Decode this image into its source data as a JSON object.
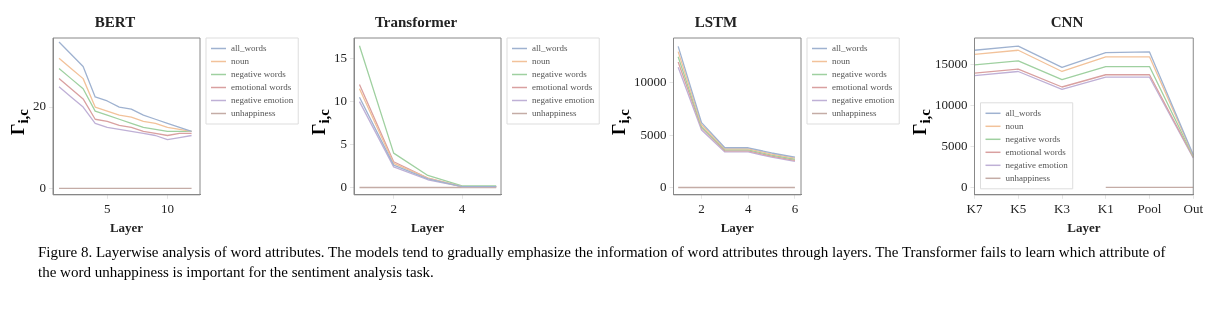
{
  "chart_data": [
    {
      "type": "line",
      "title": "BERT",
      "xlabel": "Layer",
      "ylabel": "Γ$_{i,c}$",
      "x": [
        1,
        2,
        3,
        4,
        5,
        6,
        7,
        8,
        9,
        10,
        11,
        12
      ],
      "xlim": [
        0.5,
        12.7
      ],
      "xticks": [
        5,
        10
      ],
      "ylim": [
        -1.6,
        37
      ],
      "yticks": [
        0,
        20
      ],
      "grid": false,
      "legend": "top right",
      "marker": "none",
      "line_style": "solid",
      "annotations": [
        "Figure 8. Layerwise analysis of word attributes. The models tend to gradually emphasize the information of word attributes through layers. The Transformer fails to learn which attribute of the word unhappiness is important for the sentiment analysis task."
      ],
      "series": [
        {
          "name": "all_words",
          "color": "#9fb2d0",
          "values": [
            36,
            33,
            30,
            22.5,
            21.5,
            20,
            19.5,
            18,
            17,
            16,
            15,
            14
          ]
        },
        {
          "name": "noun",
          "color": "#f2c29a",
          "values": [
            32,
            29.5,
            27,
            20,
            19,
            18,
            17.5,
            16.5,
            16,
            15,
            14.5,
            14
          ]
        },
        {
          "name": "negative words",
          "color": "#9fd0a0",
          "values": [
            29.5,
            27,
            24.5,
            19,
            18,
            17,
            16,
            15,
            14.5,
            14,
            14,
            14
          ]
        },
        {
          "name": "emotional words",
          "color": "#d9a0a0",
          "values": [
            27,
            24.5,
            22,
            17,
            16.5,
            15.5,
            15,
            14,
            13.5,
            13,
            13.5,
            13.5
          ]
        },
        {
          "name": "negative emotion",
          "color": "#bfb0d6",
          "values": [
            25,
            22.5,
            20,
            16,
            15,
            14.5,
            14,
            13.5,
            13,
            12,
            12.5,
            13
          ]
        },
        {
          "name": "unhappiness",
          "color": "#c4aca6",
          "values": [
            0,
            0,
            0,
            0,
            0,
            0,
            0,
            0,
            0,
            0,
            0,
            0
          ]
        }
      ]
    },
    {
      "type": "line",
      "title": "Transformer",
      "xlabel": "Layer",
      "ylabel": "Γ$_{i,c}$",
      "x": [
        1,
        2,
        3,
        4,
        5
      ],
      "xlim": [
        0.84,
        5.14
      ],
      "xticks": [
        2,
        4
      ],
      "ylim": [
        -0.85,
        17.4
      ],
      "yticks": [
        0,
        5,
        10,
        15
      ],
      "grid": false,
      "legend": "top right",
      "marker": "none",
      "line_style": "solid",
      "series": [
        {
          "name": "all_words",
          "color": "#9fb2d0",
          "values": [
            10.5,
            2.6,
            1,
            0.1,
            0.1
          ]
        },
        {
          "name": "noun",
          "color": "#f2c29a",
          "values": [
            11.5,
            2.8,
            1.1,
            0.1,
            0.1
          ]
        },
        {
          "name": "negative words",
          "color": "#9fd0a0",
          "values": [
            16.5,
            4,
            1.4,
            0.2,
            0.2
          ]
        },
        {
          "name": "emotional words",
          "color": "#d9a0a0",
          "values": [
            12,
            3,
            1.1,
            0.1,
            0.1
          ]
        },
        {
          "name": "negative emotion",
          "color": "#bfb0d6",
          "values": [
            10,
            2.4,
            0.9,
            0.1,
            0.1
          ]
        },
        {
          "name": "unhappiness",
          "color": "#c4aca6",
          "values": [
            0,
            0,
            0,
            0,
            0
          ]
        }
      ]
    },
    {
      "type": "line",
      "title": "LSTM",
      "xlabel": "Layer",
      "ylabel": "Γ$_{i,c}$",
      "x": [
        1,
        2,
        3,
        4,
        5,
        6
      ],
      "xlim": [
        0.8,
        6.26
      ],
      "xticks": [
        2,
        4,
        6
      ],
      "ylim": [
        -700,
        14300
      ],
      "yticks": [
        0,
        5000,
        10000
      ],
      "grid": false,
      "legend": "top right",
      "marker": "none",
      "line_style": "solid",
      "series": [
        {
          "name": "all_words",
          "color": "#9fb2d0",
          "values": [
            13500,
            6200,
            3800,
            3800,
            3300,
            2900
          ]
        },
        {
          "name": "noun",
          "color": "#f2c29a",
          "values": [
            13000,
            6000,
            3700,
            3700,
            3200,
            2800
          ]
        },
        {
          "name": "negative words",
          "color": "#9fd0a0",
          "values": [
            12500,
            5800,
            3600,
            3600,
            3100,
            2700
          ]
        },
        {
          "name": "emotional words",
          "color": "#d9a0a0",
          "values": [
            12000,
            5700,
            3500,
            3500,
            3000,
            2600
          ]
        },
        {
          "name": "negative emotion",
          "color": "#bfb0d6",
          "values": [
            11500,
            5500,
            3400,
            3400,
            2900,
            2500
          ]
        },
        {
          "name": "unhappiness",
          "color": "#c4aca6",
          "values": [
            0,
            0,
            0,
            0,
            0,
            0
          ]
        }
      ]
    },
    {
      "type": "line",
      "title": "CNN",
      "xlabel": "Layer",
      "ylabel": "Γ$_{i,c}$",
      "categories": [
        "K7",
        "K5",
        "K3",
        "K1",
        "Pool",
        "Out"
      ],
      "ylim": [
        -900,
        18300
      ],
      "yticks": [
        0,
        5000,
        10000,
        15000
      ],
      "grid": false,
      "legend": "bottom left",
      "marker": "none",
      "line_style": "solid",
      "series": [
        {
          "name": "all_words",
          "color": "#9fb2d0",
          "values": [
            16800,
            17300,
            14700,
            16500,
            16600,
            4000
          ]
        },
        {
          "name": "noun",
          "color": "#f2c29a",
          "values": [
            16300,
            16800,
            14200,
            16000,
            16000,
            3900
          ]
        },
        {
          "name": "negative words",
          "color": "#9fd0a0",
          "values": [
            15000,
            15500,
            13200,
            14800,
            14800,
            3800
          ]
        },
        {
          "name": "emotional words",
          "color": "#d9a0a0",
          "values": [
            14000,
            14500,
            12300,
            13800,
            13800,
            3700
          ]
        },
        {
          "name": "negative emotion",
          "color": "#bfb0d6",
          "values": [
            13700,
            14200,
            12000,
            13500,
            13500,
            3600
          ]
        },
        {
          "name": "unhappiness",
          "color": "#c4aca6",
          "values": [
            null,
            null,
            null,
            0,
            0,
            0
          ]
        }
      ]
    }
  ]
}
